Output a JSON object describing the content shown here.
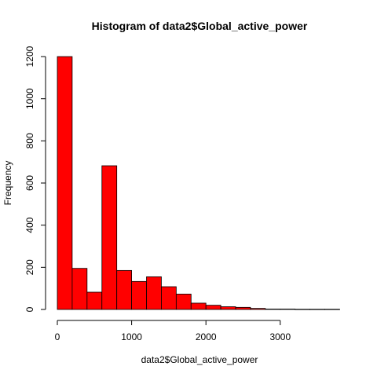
{
  "chart_data": {
    "type": "bar",
    "title": "Histogram of data2$Global_active_power",
    "xlabel": "data2$Global_active_power",
    "ylabel": "Frequency",
    "bin_width": 200,
    "bins": [
      {
        "start": 0,
        "end": 200,
        "value": 1200
      },
      {
        "start": 200,
        "end": 400,
        "value": 195
      },
      {
        "start": 400,
        "end": 600,
        "value": 82
      },
      {
        "start": 600,
        "end": 800,
        "value": 682
      },
      {
        "start": 800,
        "end": 1000,
        "value": 185
      },
      {
        "start": 1000,
        "end": 1200,
        "value": 133
      },
      {
        "start": 1200,
        "end": 1400,
        "value": 155
      },
      {
        "start": 1400,
        "end": 1600,
        "value": 108
      },
      {
        "start": 1600,
        "end": 1800,
        "value": 73
      },
      {
        "start": 1800,
        "end": 2000,
        "value": 30
      },
      {
        "start": 2000,
        "end": 2200,
        "value": 20
      },
      {
        "start": 2200,
        "end": 2400,
        "value": 13
      },
      {
        "start": 2400,
        "end": 2600,
        "value": 10
      },
      {
        "start": 2600,
        "end": 2800,
        "value": 5
      },
      {
        "start": 2800,
        "end": 3000,
        "value": 2
      },
      {
        "start": 3000,
        "end": 3200,
        "value": 2
      },
      {
        "start": 3200,
        "end": 3400,
        "value": 1
      },
      {
        "start": 3400,
        "end": 3600,
        "value": 1
      },
      {
        "start": 3600,
        "end": 3800,
        "value": 1
      }
    ],
    "xticks": [
      "0",
      "1000",
      "2000",
      "3000"
    ],
    "yticks": [
      "0",
      "200",
      "400",
      "600",
      "800",
      "1000",
      "1200"
    ],
    "xlim": [
      0,
      3800
    ],
    "ylim": [
      0,
      1200
    ],
    "bar_color": "#ff0000",
    "grid": false
  }
}
